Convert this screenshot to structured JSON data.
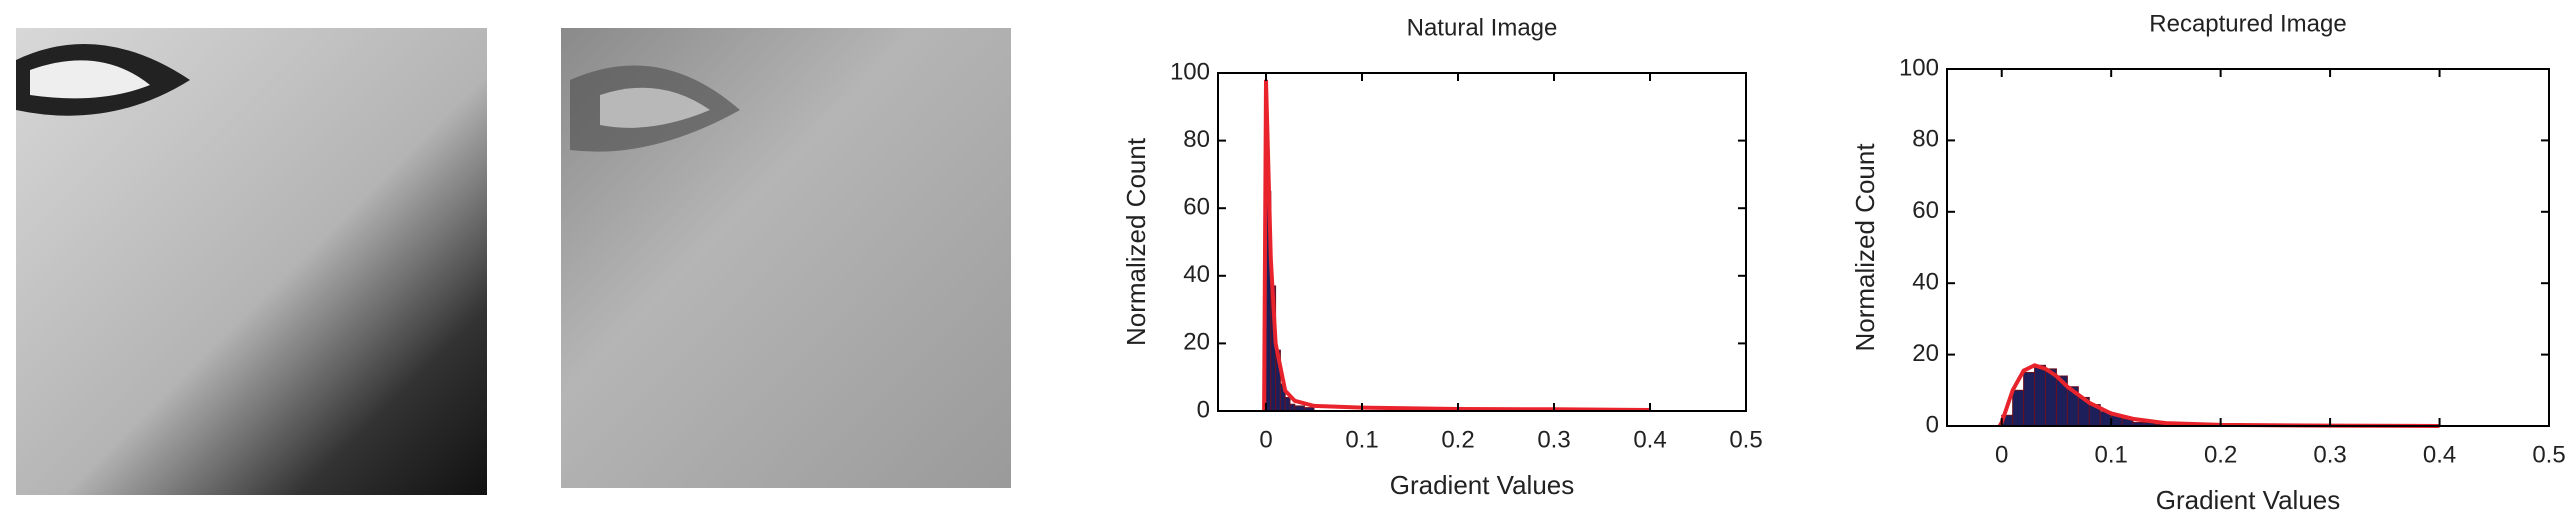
{
  "chart_data": [
    {
      "type": "histogram",
      "title": "Natural Image",
      "xlabel": "Gradient Values",
      "ylabel": "Normalized Count",
      "bins": [
        0,
        0.005,
        0.01,
        0.015,
        0.02,
        0.025,
        0.03,
        0.04,
        0.05
      ],
      "counts": [
        65,
        37,
        18,
        8,
        4,
        2,
        1.5,
        1
      ],
      "color": "#1c1f5a",
      "fit": {
        "x": [
          -0.002,
          0,
          0.005,
          0.01,
          0.02,
          0.03,
          0.05,
          0.1,
          0.2,
          0.3,
          0.4
        ],
        "values": [
          0,
          98,
          45,
          20,
          6,
          3,
          1.5,
          1,
          0.6,
          0.5,
          0.3
        ],
        "color": "#e8232b"
      },
      "xlim": [
        -0.05,
        0.5
      ],
      "ylim": [
        0,
        100
      ],
      "xticks": [
        0,
        0.1,
        0.2,
        0.3,
        0.4,
        0.5
      ],
      "yticks": [
        0,
        20,
        40,
        60,
        80,
        100
      ]
    },
    {
      "type": "histogram",
      "title": "Recaptured Image",
      "xlabel": "Gradient Values",
      "ylabel": "Normalized Count",
      "bins": [
        0,
        0.01,
        0.02,
        0.03,
        0.04,
        0.05,
        0.06,
        0.07,
        0.08,
        0.09,
        0.1,
        0.11,
        0.12,
        0.13,
        0.14,
        0.15,
        0.16
      ],
      "counts": [
        3,
        10,
        15,
        17,
        16,
        14,
        11,
        8,
        6,
        4,
        3,
        2,
        1,
        1,
        0.5,
        0.3
      ],
      "color": "#1c1f5a",
      "fit": {
        "x": [
          -0.002,
          0,
          0.01,
          0.02,
          0.03,
          0.04,
          0.05,
          0.06,
          0.08,
          0.1,
          0.12,
          0.15,
          0.2,
          0.3,
          0.4
        ],
        "values": [
          0,
          1,
          10,
          15.5,
          17,
          16,
          14,
          11,
          6.5,
          3.5,
          2,
          0.8,
          0.3,
          0.1,
          0
        ],
        "color": "#e8232b"
      },
      "xlim": [
        -0.05,
        0.5
      ],
      "ylim": [
        0,
        100
      ],
      "xticks": [
        0,
        0.1,
        0.2,
        0.3,
        0.4,
        0.5
      ],
      "yticks": [
        0,
        20,
        40,
        60,
        80,
        100
      ]
    }
  ]
}
